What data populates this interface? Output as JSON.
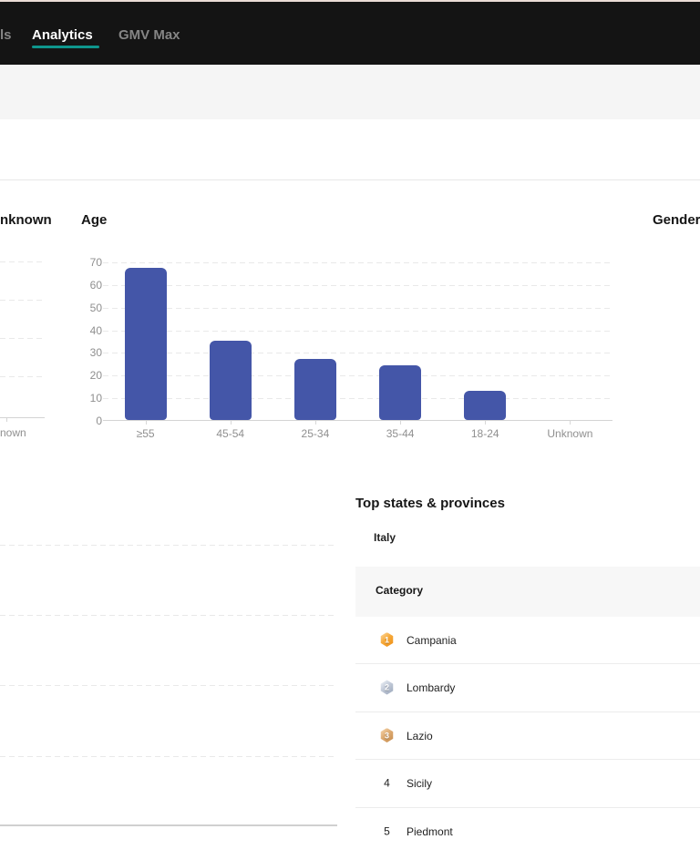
{
  "nav": {
    "partial_tab": "ls",
    "tabs": [
      {
        "label": "Analytics",
        "active": true
      },
      {
        "label": "GMV Max",
        "active": false
      }
    ],
    "accent_color": "#0e968c"
  },
  "charts": {
    "left_fragment": {
      "title_partial": "nknown",
      "x_label_partial": "nown"
    },
    "gender": {
      "title": "Gender"
    }
  },
  "chart_data": {
    "type": "bar",
    "title": "Age",
    "categories": [
      "≥55",
      "45-54",
      "25-34",
      "35-44",
      "18-24",
      "Unknown"
    ],
    "values": [
      67,
      35,
      27,
      24,
      13,
      0
    ],
    "xlabel": "",
    "ylabel": "",
    "ylim": [
      0,
      70
    ],
    "ytick_step": 10,
    "grid": "dashed-horizontal",
    "legend": "none",
    "bar_color": "#4456a8"
  },
  "top_states": {
    "title": "Top states & provinces",
    "country_tab": "Italy",
    "column_header": "Category",
    "rows": [
      {
        "rank": "1",
        "label": "Campania",
        "medal": "gold"
      },
      {
        "rank": "2",
        "label": "Lombardy",
        "medal": "silver"
      },
      {
        "rank": "3",
        "label": "Lazio",
        "medal": "bronze"
      },
      {
        "rank": "4",
        "label": "Sicily",
        "medal": "none"
      },
      {
        "rank": "5",
        "label": "Piedmont",
        "medal": "none"
      }
    ]
  },
  "colors": {
    "bar": "#4456a8",
    "accent_underline": "#0e968c",
    "nav_background": "#141414"
  }
}
